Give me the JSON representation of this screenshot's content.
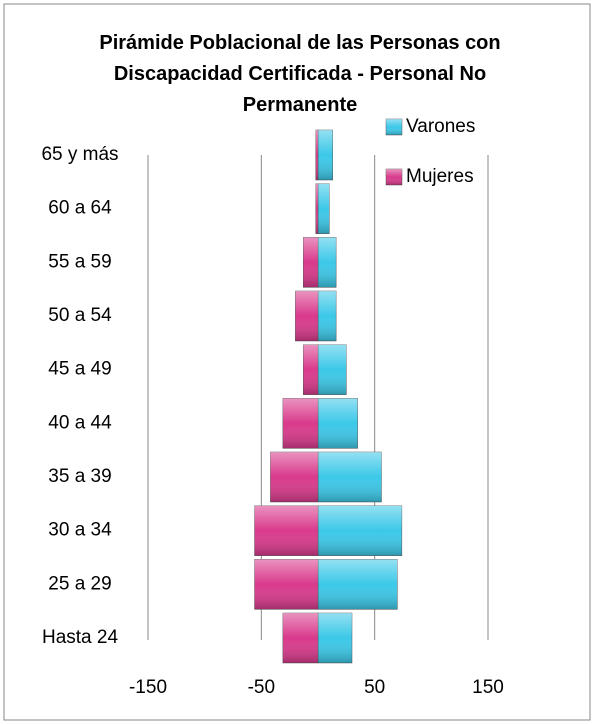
{
  "chart_data": {
    "type": "bar",
    "title": "Pirámide Poblacional de las Personas con Discapacidad Certificada - Personal No Permanente",
    "categories": [
      "Hasta 24",
      "25 a 29",
      "30 a 34",
      "35 a 39",
      "40 a 44",
      "45 a 49",
      "50 a 54",
      "55 a 59",
      "60 a 64",
      "65 y más"
    ],
    "series": [
      {
        "name": "Varones",
        "color": "#3cc8e8",
        "values": [
          30,
          70,
          74,
          56,
          35,
          25,
          16,
          16,
          10,
          13
        ]
      },
      {
        "name": "Mujeres",
        "color": "#d93a8c",
        "values": [
          -31,
          -56,
          -56,
          -42,
          -31,
          -13,
          -20,
          -13,
          -2,
          -2
        ]
      }
    ],
    "xlim": [
      -150,
      150
    ],
    "xticks": [
      -150,
      -50,
      50,
      150
    ],
    "grid": true
  }
}
